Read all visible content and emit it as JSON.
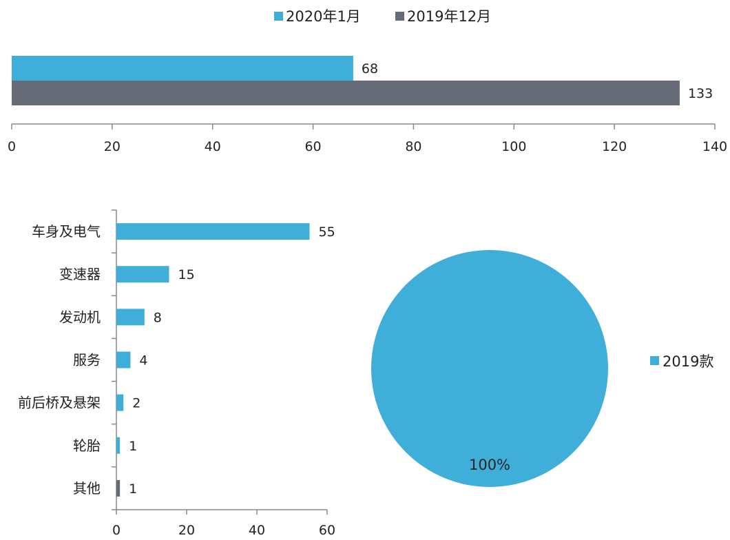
{
  "colors": {
    "blue": "#3FAED9",
    "gray": "#656C78",
    "axis": "#888888"
  },
  "chart_data": [
    {
      "type": "bar",
      "orientation": "horizontal",
      "categories": [
        ""
      ],
      "series": [
        {
          "name": "2020年1月",
          "values": [
            68
          ],
          "color": "#3FAED9"
        },
        {
          "name": "2019年12月",
          "values": [
            133
          ],
          "color": "#656C78"
        }
      ],
      "xlim": [
        0,
        140
      ],
      "xticks": [
        "0",
        "20",
        "40",
        "60",
        "80",
        "100",
        "120",
        "140"
      ],
      "data_labels": [
        "68",
        "133"
      ],
      "legend_position": "top-center",
      "grid": false
    },
    {
      "type": "bar",
      "orientation": "horizontal",
      "categories": [
        "车身及电气",
        "变速器",
        "发动机",
        "服务",
        "前后桥及悬架",
        "轮胎",
        "其他"
      ],
      "values": [
        55,
        15,
        8,
        4,
        2,
        1,
        1
      ],
      "bar_colors": [
        "#3FAED9",
        "#3FAED9",
        "#3FAED9",
        "#3FAED9",
        "#3FAED9",
        "#3FAED9",
        "#656C78"
      ],
      "data_labels": [
        "55",
        "15",
        "8",
        "4",
        "2",
        "1",
        "1"
      ],
      "xlim": [
        0,
        60
      ],
      "xticks": [
        "0",
        "20",
        "40",
        "60"
      ],
      "grid": false
    },
    {
      "type": "pie",
      "slices": [
        {
          "name": "2019款",
          "value": 100,
          "label": "100%",
          "color": "#3FAED9"
        }
      ],
      "legend_position": "right"
    }
  ]
}
